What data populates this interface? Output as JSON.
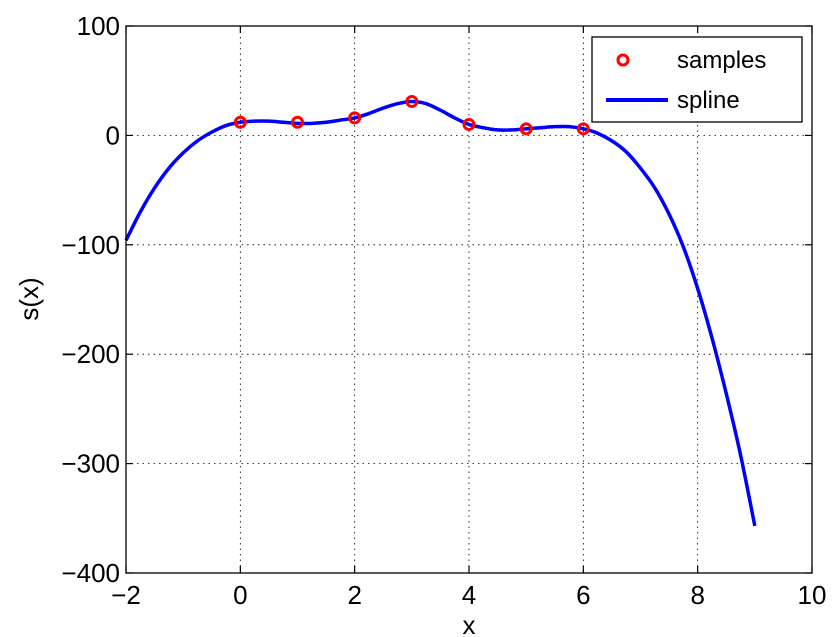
{
  "chart_data": {
    "type": "line",
    "xlabel": "x",
    "ylabel": "s(x)",
    "xlim": [
      -2,
      10
    ],
    "ylim": [
      -400,
      100
    ],
    "xticks": [
      -2,
      0,
      2,
      4,
      6,
      8,
      10
    ],
    "yticks": [
      -400,
      -300,
      -200,
      -100,
      0,
      100
    ],
    "xtick_labels": [
      "−2",
      "0",
      "2",
      "4",
      "6",
      "8",
      "10"
    ],
    "ytick_labels": [
      "−400",
      "−300",
      "−200",
      "−100",
      "0",
      "100"
    ],
    "grid": true,
    "legend_position": "top-right",
    "series": [
      {
        "name": "samples",
        "style": "markers",
        "color": "#ff0000",
        "x": [
          0,
          1,
          2,
          3,
          4,
          5,
          6
        ],
        "y": [
          12,
          12,
          16,
          31,
          10,
          6,
          6
        ]
      },
      {
        "name": "spline",
        "style": "line",
        "color": "#0000ff",
        "x": [
          -2,
          -1.75,
          -1.5,
          -1.25,
          -1,
          -0.75,
          -0.5,
          -0.25,
          0,
          0.25,
          0.5,
          0.75,
          1,
          1.25,
          1.5,
          1.75,
          2,
          2.25,
          2.5,
          2.75,
          3,
          3.25,
          3.5,
          3.75,
          4,
          4.25,
          4.5,
          4.75,
          5,
          5.25,
          5.5,
          5.75,
          6,
          6.25,
          6.5,
          6.75,
          7,
          7.25,
          7.5,
          7.75,
          8,
          8.25,
          8.5,
          8.75,
          9
        ],
        "y": [
          -96,
          -70,
          -48,
          -30,
          -16,
          -5,
          3,
          9,
          12,
          13,
          13,
          12,
          11,
          11,
          12,
          14,
          16,
          20,
          25,
          29,
          31,
          29,
          23,
          16,
          10,
          7,
          5,
          5,
          6,
          7,
          8,
          8,
          6,
          2,
          -5,
          -15,
          -30,
          -48,
          -72,
          -102,
          -140,
          -185,
          -236,
          -292,
          -357
        ]
      }
    ]
  }
}
